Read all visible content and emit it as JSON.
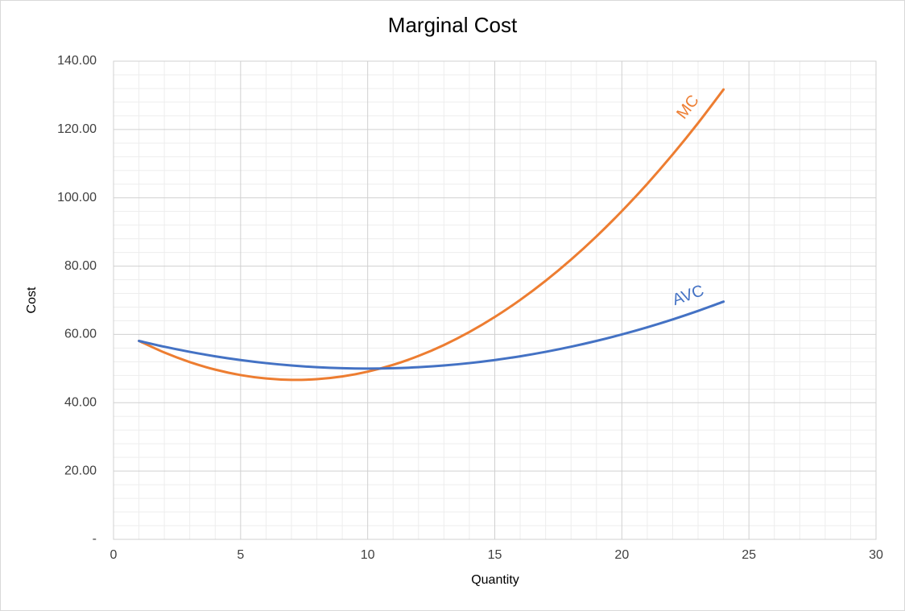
{
  "chart_data": {
    "type": "line",
    "title": "Marginal Cost",
    "x_label": "Quantity",
    "y_label": "Cost",
    "x": [
      1,
      2,
      3,
      4,
      5,
      6,
      7,
      8,
      9,
      10,
      11,
      12,
      13,
      14,
      15,
      16,
      17,
      18,
      19,
      20,
      21,
      22,
      23,
      24
    ],
    "series": [
      {
        "name": "MC",
        "color": "#ed7d31",
        "values": [
          58.1,
          54.7,
          51.9,
          49.7,
          48.1,
          47.1,
          46.7,
          46.9,
          47.7,
          49.1,
          51.1,
          53.7,
          56.9,
          60.7,
          65.1,
          70.1,
          75.7,
          81.9,
          88.7,
          96.1,
          104.1,
          112.7,
          121.9,
          131.7
        ]
      },
      {
        "name": "AVC",
        "color": "#4472c4",
        "values": [
          58.1,
          56.4,
          54.9,
          53.6,
          52.5,
          51.6,
          50.9,
          50.4,
          50.1,
          50,
          50.1,
          50.4,
          50.9,
          51.6,
          52.5,
          53.6,
          54.9,
          56.4,
          58.1,
          60,
          62.1,
          64.4,
          66.9,
          69.6
        ]
      }
    ],
    "xlim": [
      0,
      30
    ],
    "xticks": [
      0,
      5,
      10,
      15,
      20,
      25,
      30
    ],
    "ylim": [
      0,
      140
    ],
    "yticks": [
      {
        "value": 0,
        "label": "-"
      },
      {
        "value": 20,
        "label": "20.00"
      },
      {
        "value": 40,
        "label": "40.00"
      },
      {
        "value": 60,
        "label": "60.00"
      },
      {
        "value": 80,
        "label": "80.00"
      },
      {
        "value": 100,
        "label": "100.00"
      },
      {
        "value": 120,
        "label": "120.00"
      },
      {
        "value": 140,
        "label": "140.00"
      }
    ],
    "grid": true,
    "minor_grid": true
  }
}
